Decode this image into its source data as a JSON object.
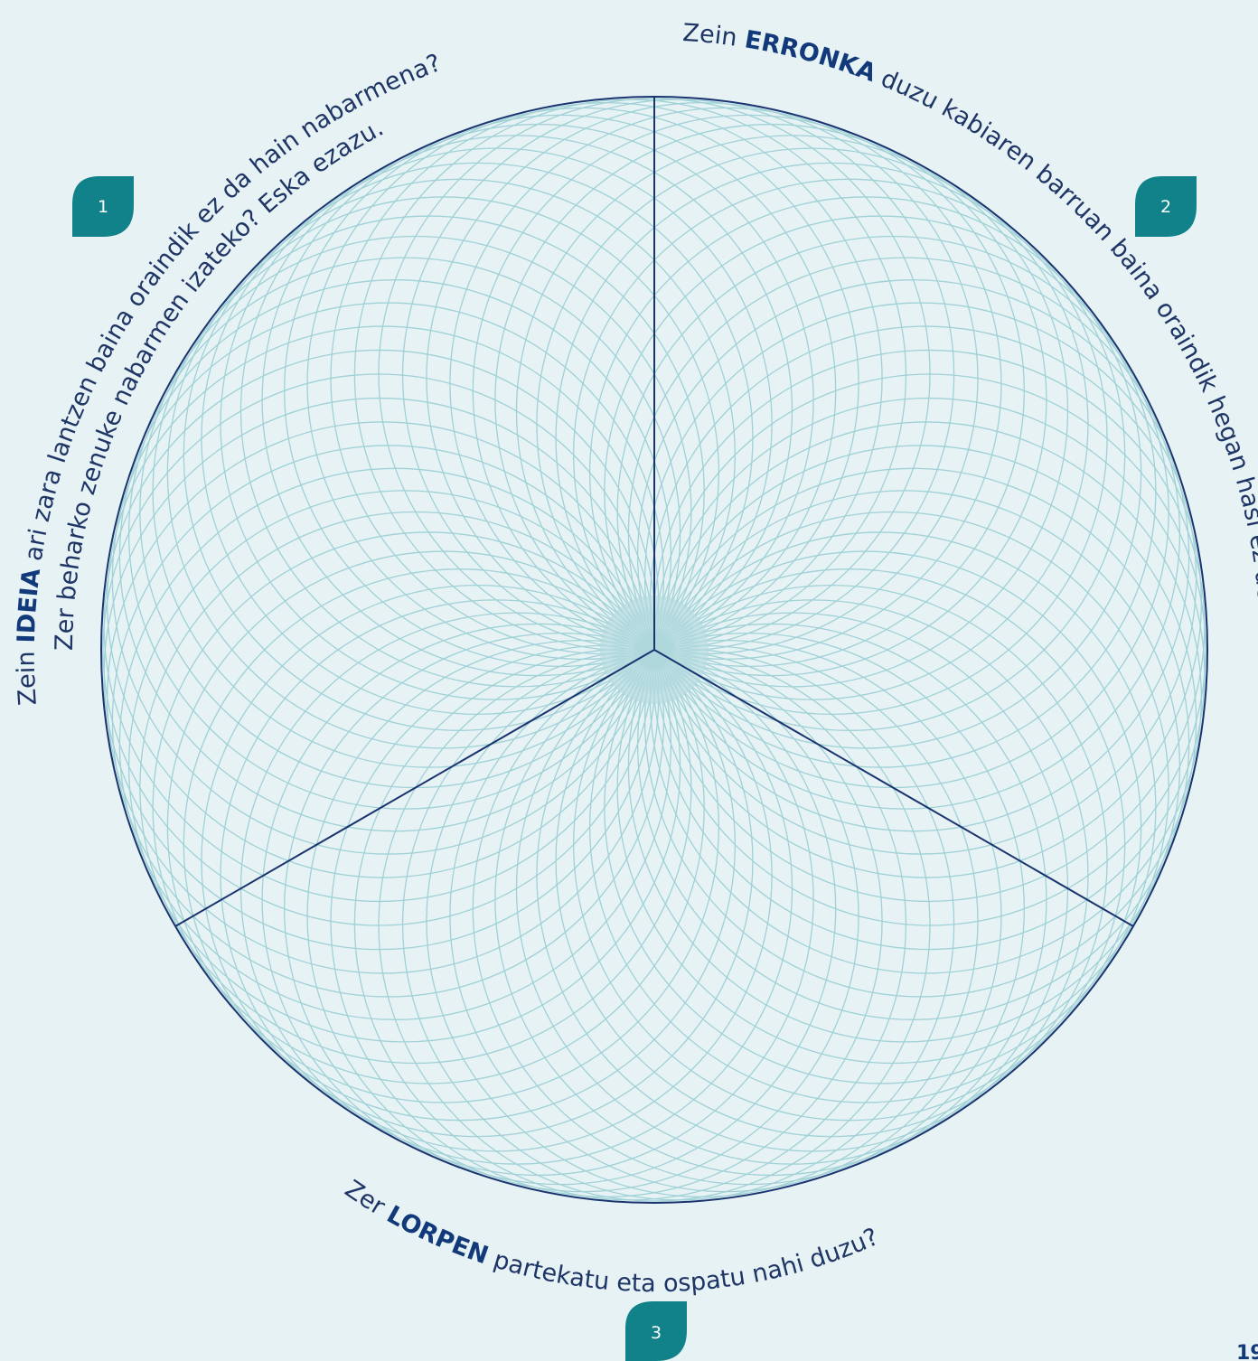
{
  "colors": {
    "background": "#e6f2f4",
    "outline": "#1a3470",
    "pattern": "#9fd1d6",
    "badge": "#11818a",
    "text": "#1f3566",
    "strong": "#123a7a"
  },
  "sections": [
    {
      "number": "1",
      "line1": {
        "pre": "Zein ",
        "strong": "IDEIA",
        "post": " ari zara lantzen baina oraindik ez da hain nabarmena?"
      },
      "line2": {
        "pre": "Zer beharko zenuke nabarmen izateko? Eska ezazu.",
        "strong": "",
        "post": ""
      }
    },
    {
      "number": "2",
      "line1": {
        "pre": "Zein ",
        "strong": "ERRONKA",
        "post": " duzu kabiaren barruan baina oraindik hegan hasi ez dena?"
      }
    },
    {
      "number": "3",
      "line1": {
        "pre": "Zer ",
        "strong": "LORPEN",
        "post": " partekatu eta ospatu nahi duzu?"
      }
    }
  ],
  "page_number": "19"
}
